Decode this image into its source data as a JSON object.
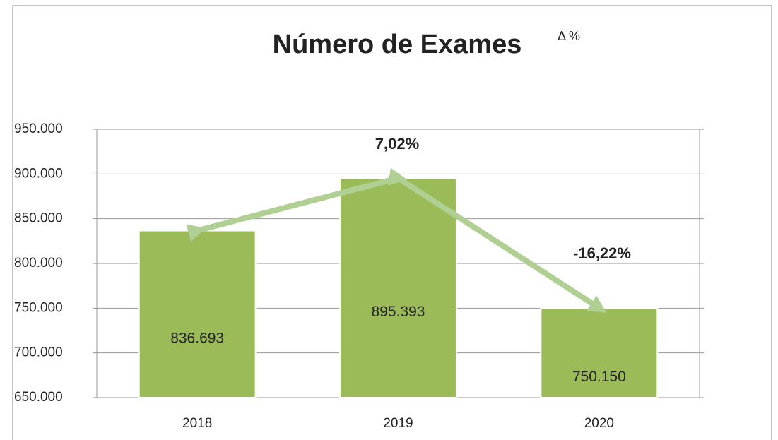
{
  "chart_data": {
    "type": "bar",
    "title": "Número de Exames",
    "subtitle": "Δ %",
    "categories": [
      "2018",
      "2019",
      "2020"
    ],
    "values": [
      836693,
      895393,
      750150
    ],
    "value_labels": [
      "836.693",
      "895.393",
      "750.150"
    ],
    "color": "#9bbb59",
    "line_color": "#b0cf92",
    "annotations": [
      "7,02%",
      "-16,22%"
    ],
    "ylim": [
      650000,
      950000
    ],
    "yticks": [
      {
        "value": 650000,
        "label": "650.000"
      },
      {
        "value": 700000,
        "label": "700.000"
      },
      {
        "value": 750000,
        "label": "750.000"
      },
      {
        "value": 800000,
        "label": "800.000"
      },
      {
        "value": 850000,
        "label": "850.000"
      },
      {
        "value": 900000,
        "label": "900.000"
      },
      {
        "value": 950000,
        "label": "950.000"
      }
    ],
    "grid": true
  }
}
